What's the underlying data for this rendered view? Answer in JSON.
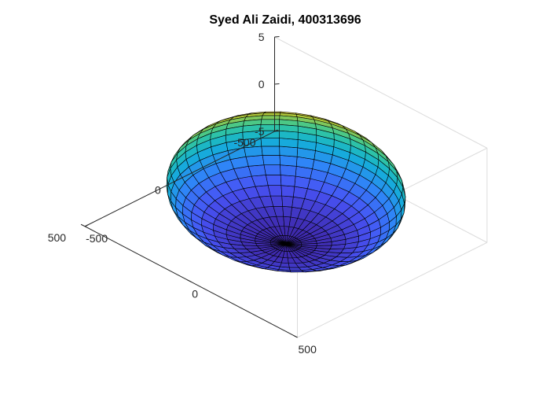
{
  "chart_data": {
    "type": "surface",
    "title": "Syed Ali Zaidi, 400313696",
    "xlabel": "",
    "ylabel": "",
    "zlabel": "",
    "xlim": [
      -500,
      500
    ],
    "ylim": [
      -500,
      500
    ],
    "zlim": [
      -5,
      5
    ],
    "x_ticks": [
      -500,
      0,
      500
    ],
    "y_ticks": [
      -500,
      0,
      500
    ],
    "z_ticks": [
      -5,
      0,
      5
    ],
    "x_tick_labels": [
      "-500",
      "0",
      "500"
    ],
    "y_tick_labels": [
      "-500",
      "0",
      "500"
    ],
    "z_tick_labels": [
      "-5",
      "0",
      "5"
    ],
    "surface": {
      "shape": "ellipsoid",
      "center": [
        0,
        0,
        -0.5
      ],
      "radius_x": 420,
      "radius_y": 420,
      "radius_z": 5.5,
      "z_range": [
        -6,
        5
      ],
      "latitude_bands": 24,
      "longitude_segments": 40
    },
    "colormap": "parula",
    "color_by": "z",
    "edge_color": "#000000",
    "box": true,
    "grid": false,
    "legend": "none"
  }
}
